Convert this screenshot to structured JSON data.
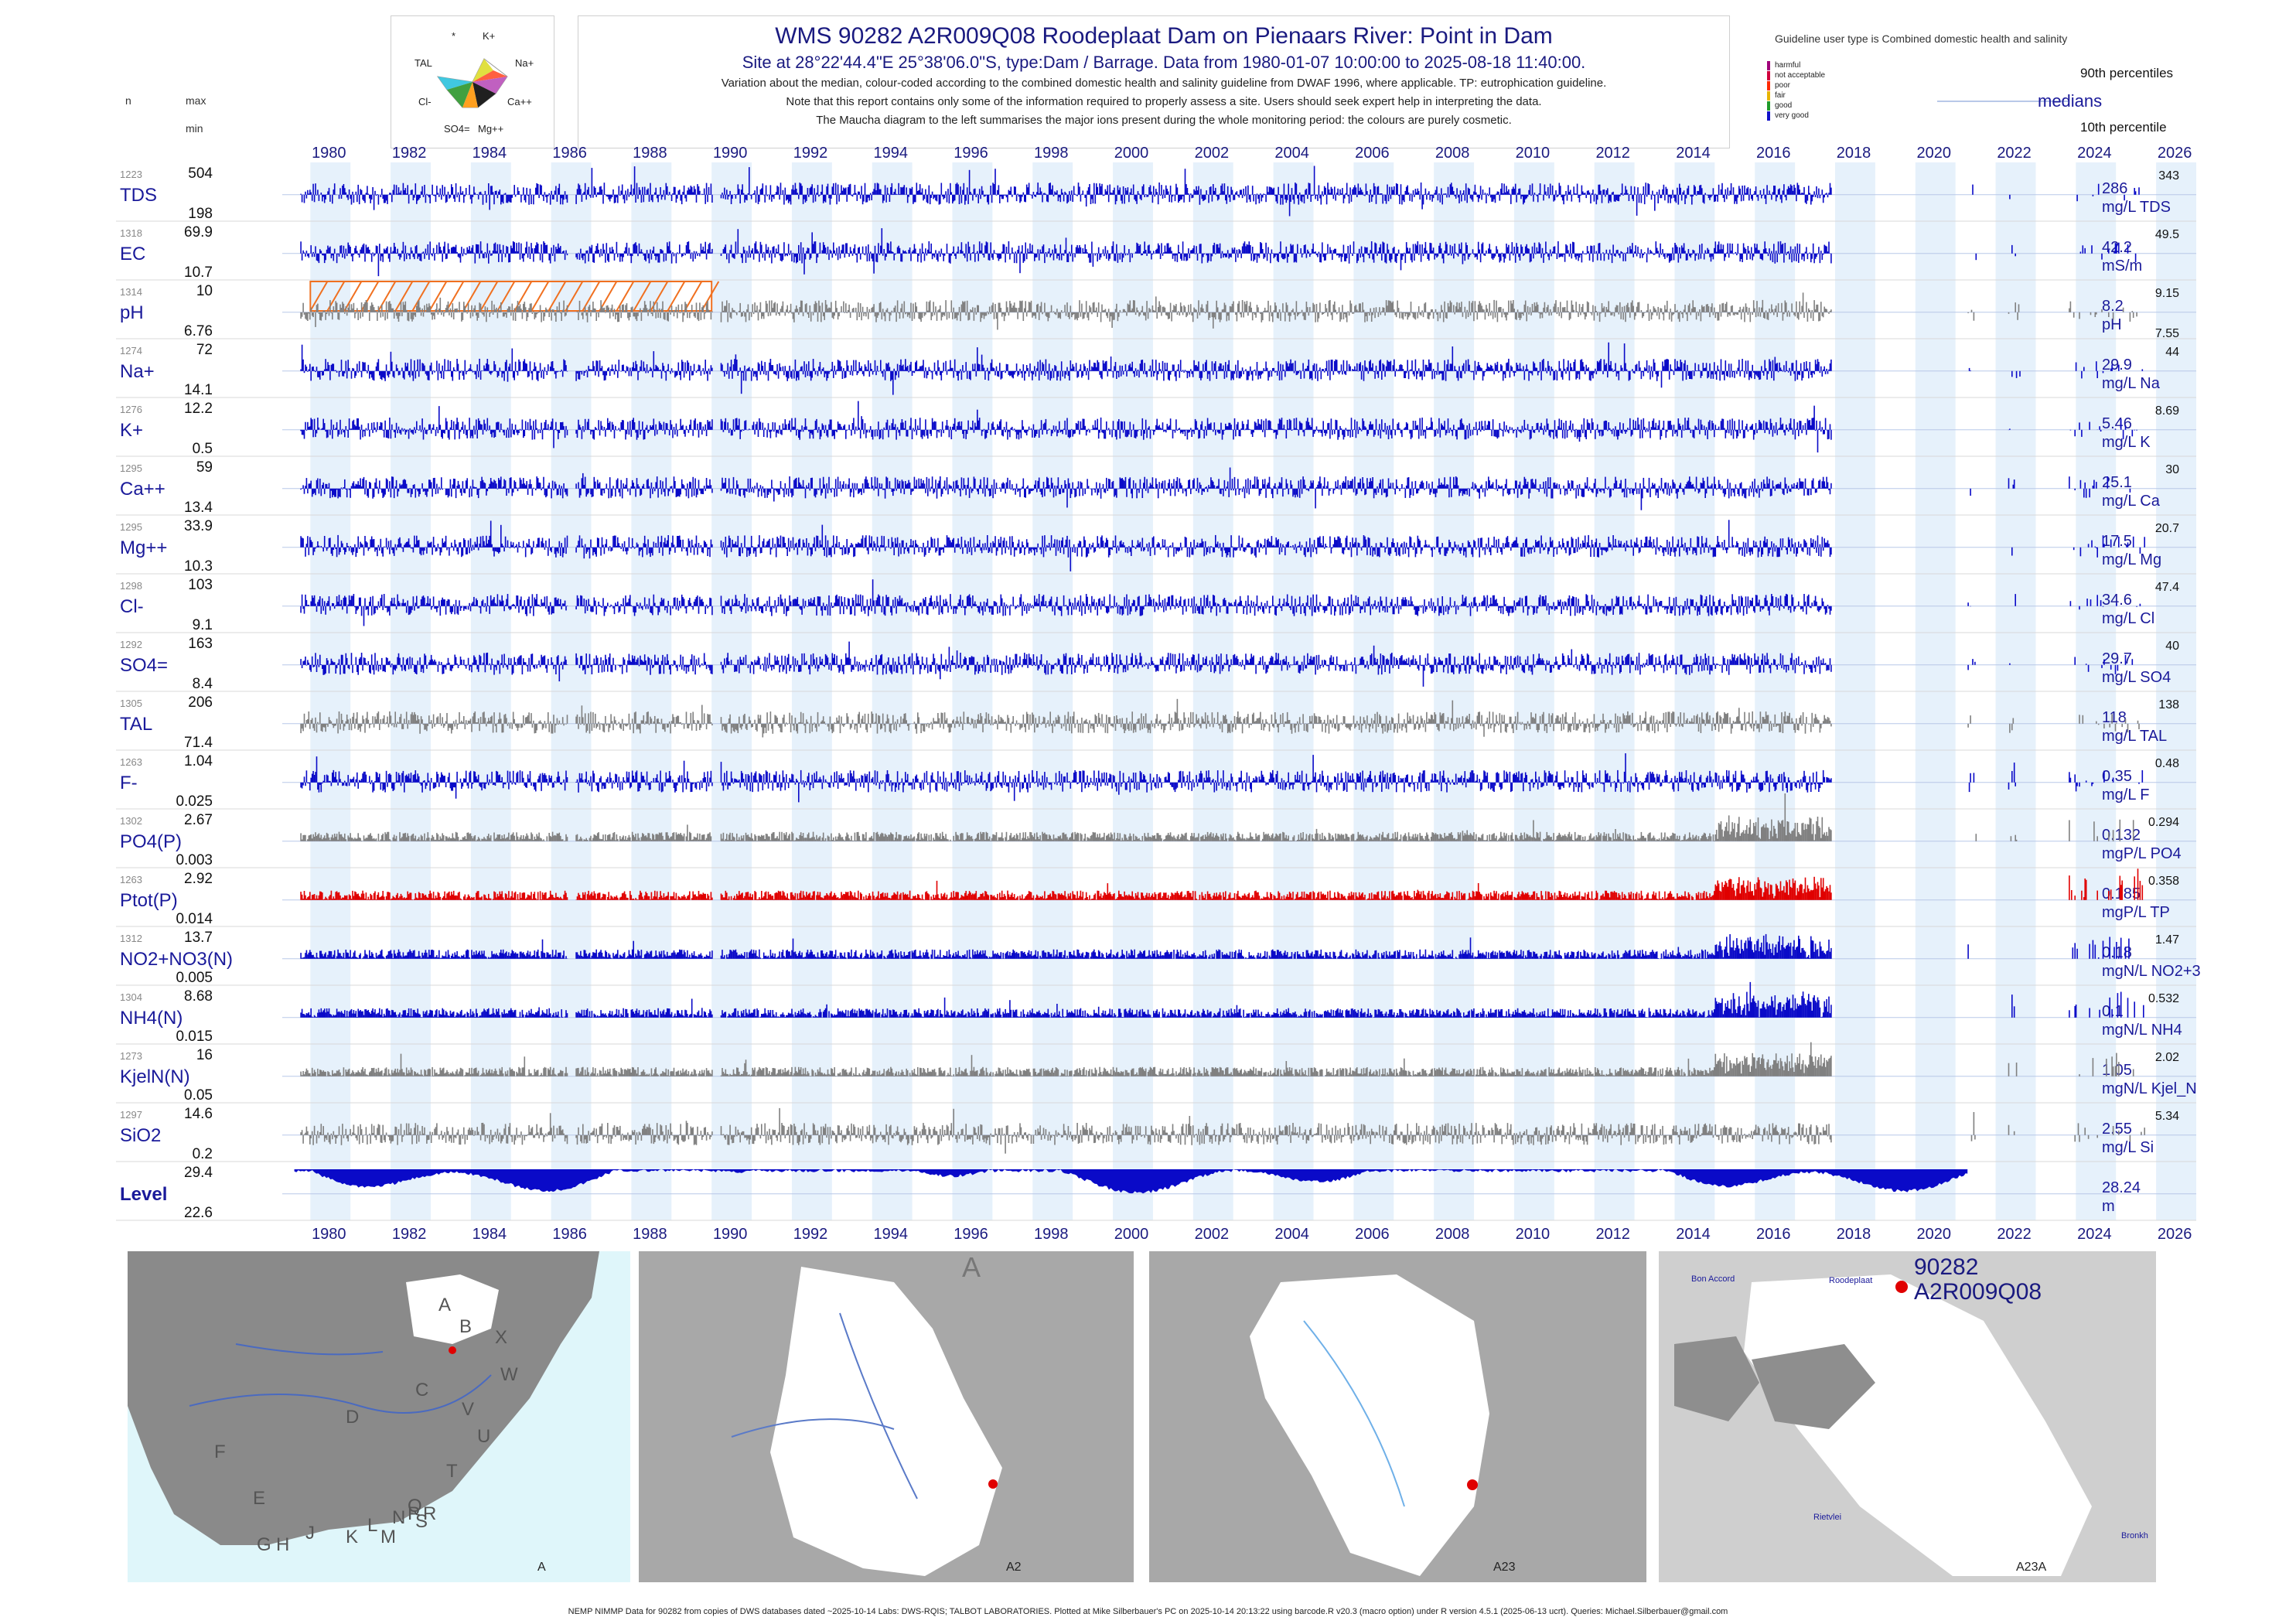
{
  "header": {
    "title": "WMS 90282 A2R009Q08 Roodeplaat Dam on Pienaars River: Point in Dam",
    "subtitle": "Site at 28°22'44.4\"E 25°38'06.0\"S, type:Dam / Barrage.  Data from 1980-01-07 10:00:00 to 2025-08-18 11:40:00.",
    "note1": "Variation about the median,  colour-coded according to the combined domestic health and salinity guideline from DWAF 1996, where applicable. TP: eutrophication guideline.",
    "note2": "Note that this report contains only some of the information required to properly assess a site. Users should seek expert help in interpreting the data.",
    "note3": "The Maucha diagram to the left summarises the major ions present during the whole monitoring period: the colours are purely cosmetic."
  },
  "legend": {
    "guideline_text": "Guideline user type is Combined domestic health and salinity",
    "classes": [
      {
        "label": "harmful",
        "color": "#a0007a"
      },
      {
        "label": "not acceptable",
        "color": "#d0003c"
      },
      {
        "label": "poor",
        "color": "#ff2a00"
      },
      {
        "label": "fair",
        "color": "#e8b400"
      },
      {
        "label": "good",
        "color": "#1f9a2a"
      },
      {
        "label": "very good",
        "color": "#1010c8"
      }
    ],
    "p90_label": "90th percentiles",
    "median_label": "medians",
    "p10_label": "10th percentile",
    "col_n": "n",
    "col_max": "max",
    "col_min": "min"
  },
  "maucha": {
    "labels": [
      "K+",
      "Na+",
      "Ca++",
      "Mg++",
      "SO4=",
      "Cl-",
      "TAL",
      "*"
    ]
  },
  "colors": {
    "blue": "#0a0ac8",
    "grey": "#808080",
    "red": "#e00000",
    "shade": "#e6f1fb",
    "hatch": "#f07020",
    "text": "#1a1a9a"
  },
  "chart_data": {
    "type": "bar",
    "x_range": [
      1979.3,
      2027.0
    ],
    "x_ticks": [
      "1980",
      "1982",
      "1984",
      "1986",
      "1988",
      "1990",
      "1992",
      "1994",
      "1996",
      "1998",
      "2000",
      "2002",
      "2004",
      "2006",
      "2008",
      "2010",
      "2012",
      "2014",
      "2016",
      "2018",
      "2020",
      "2022",
      "2024",
      "2026"
    ],
    "series": [
      {
        "name": "TDS",
        "n": "1223",
        "max": "504",
        "min": "198",
        "median": "286",
        "p90": "343",
        "unit": "mg/L TDS",
        "color": "blue"
      },
      {
        "name": "EC",
        "n": "1318",
        "max": "69.9",
        "min": "10.7",
        "median": "42.2",
        "p90": "49.5",
        "unit": "mS/m",
        "color": "blue"
      },
      {
        "name": "pH",
        "n": "1314",
        "max": "10",
        "min": "6.76",
        "median": "8.2",
        "p90": "9.15",
        "p10": "7.55",
        "unit": "pH",
        "color": "grey"
      },
      {
        "name": "Na+",
        "n": "1274",
        "max": "72",
        "min": "14.1",
        "median": "29.9",
        "p90": "44",
        "unit": "mg/L Na",
        "color": "blue"
      },
      {
        "name": "K+",
        "n": "1276",
        "max": "12.2",
        "min": "0.5",
        "median": "5.46",
        "p90": "8.69",
        "unit": "mg/L K",
        "color": "blue"
      },
      {
        "name": "Ca++",
        "n": "1295",
        "max": "59",
        "min": "13.4",
        "median": "25.1",
        "p90": "30",
        "unit": "mg/L Ca",
        "color": "blue"
      },
      {
        "name": "Mg++",
        "n": "1295",
        "max": "33.9",
        "min": "10.3",
        "median": "17.5",
        "p90": "20.7",
        "unit": "mg/L Mg",
        "color": "blue"
      },
      {
        "name": "Cl-",
        "n": "1298",
        "max": "103",
        "min": "9.1",
        "median": "34.6",
        "p90": "47.4",
        "unit": "mg/L Cl",
        "color": "blue"
      },
      {
        "name": "SO4=",
        "n": "1292",
        "max": "163",
        "min": "8.4",
        "median": "29.7",
        "p90": "40",
        "unit": "mg/L SO4",
        "color": "blue"
      },
      {
        "name": "TAL",
        "n": "1305",
        "max": "206",
        "min": "71.4",
        "median": "118",
        "p90": "138",
        "unit": "mg/L TAL",
        "color": "grey"
      },
      {
        "name": "F-",
        "n": "1263",
        "max": "1.04",
        "min": "0.025",
        "median": "0.35",
        "p90": "0.48",
        "unit": "mg/L F",
        "color": "blue"
      },
      {
        "name": "PO4(P)",
        "n": "1302",
        "max": "2.67",
        "min": "0.003",
        "median": "0.132",
        "p90": "0.294",
        "unit": "mgP/L PO4",
        "color": "grey"
      },
      {
        "name": "Ptot(P)",
        "n": "1263",
        "max": "2.92",
        "min": "0.014",
        "median": "0.185",
        "p90": "0.358",
        "unit": "mgP/L TP",
        "color": "red"
      },
      {
        "name": "NO2+NO3(N)",
        "n": "1312",
        "max": "13.7",
        "min": "0.005",
        "median": "0.18",
        "p90": "1.47",
        "unit": "mgN/L NO2+3",
        "color": "blue"
      },
      {
        "name": "NH4(N)",
        "n": "1304",
        "max": "8.68",
        "min": "0.015",
        "median": "0.1",
        "p90": "0.532",
        "unit": "mgN/L NH4",
        "color": "blue"
      },
      {
        "name": "KjelN(N)",
        "n": "1273",
        "max": "16",
        "min": "0.05",
        "median": "1.05",
        "p90": "2.02",
        "unit": "mgN/L Kjel_N",
        "color": "grey"
      },
      {
        "name": "SiO2",
        "n": "1297",
        "max": "14.6",
        "min": "0.2",
        "median": "2.55",
        "p90": "5.34",
        "unit": "mg/L Si",
        "color": "grey"
      },
      {
        "name": "Level",
        "n": "",
        "max": "29.4",
        "min": "22.6",
        "median": "28.24",
        "p90": "",
        "unit": "m",
        "color": "blue"
      }
    ]
  },
  "maps": [
    {
      "label": "A",
      "regions": [
        "A",
        "B",
        "X",
        "W",
        "C",
        "D",
        "V",
        "U",
        "T",
        "F",
        "E",
        "G",
        "H",
        "J",
        "K",
        "L",
        "M",
        "N",
        "P",
        "Q",
        "S",
        "R"
      ]
    },
    {
      "label": "A2",
      "regions": [
        "A"
      ]
    },
    {
      "label": "A23",
      "regions": []
    },
    {
      "label": "A23A",
      "site_id": "90282",
      "site_code": "A2R009Q08",
      "places": [
        "Bon Accord",
        "Roodeplaat",
        "Rietvlei",
        "Bronkh"
      ]
    }
  ],
  "footer": "NEMP NIMMP Data for 90282 from copies of DWS databases dated ~2025-10-14 Labs: DWS-RQIS; TALBOT LABORATORIES. Plotted at Mike Silberbauer's PC on 2025-10-14 20:13:22 using barcode.R v20.3 (macro option) under R version 4.5.1 (2025-06-13 ucrt). Queries: Michael.Silberbauer@gmail.com"
}
